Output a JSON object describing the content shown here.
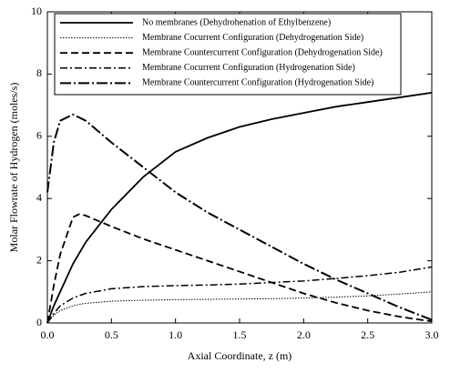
{
  "chart_data": {
    "type": "line",
    "x_label": "Axial Coordinate, z (m)",
    "y_label": "Molar Flowrate of Hydrogen (moles/s)",
    "x": [
      0,
      0.05,
      0.1,
      0.2,
      0.25,
      0.3,
      0.5,
      0.75,
      1,
      1.25,
      1.5,
      1.75,
      2,
      2.25,
      2.5,
      2.75,
      3
    ],
    "series": [
      {
        "name": "No membranes (Dehydrohenation of Ethylbenzene)",
        "color": "#000000",
        "linestyle": "solid",
        "values": [
          0,
          0.55,
          1.0,
          1.9,
          2.25,
          2.6,
          3.65,
          4.7,
          5.5,
          5.95,
          6.3,
          6.55,
          6.75,
          6.95,
          7.1,
          7.25,
          7.4
        ]
      },
      {
        "name": "Membrane Cocurrent Configuration (Dehydrogenation Side)",
        "color": "#000000",
        "linestyle": "dotted",
        "values": [
          0,
          0.25,
          0.4,
          0.55,
          0.6,
          0.63,
          0.7,
          0.73,
          0.75,
          0.76,
          0.77,
          0.78,
          0.8,
          0.83,
          0.87,
          0.93,
          1.0
        ]
      },
      {
        "name": "Membrane Countercurrent Configuration (Dehydrogenation Side)",
        "color": "#000000",
        "linestyle": "dashed",
        "values": [
          0,
          1.2,
          2.2,
          3.4,
          3.5,
          3.45,
          3.1,
          2.7,
          2.35,
          2.0,
          1.65,
          1.3,
          0.95,
          0.65,
          0.4,
          0.2,
          0.05
        ]
      },
      {
        "name": "Membrane Cocurrent Configuration (Hydrogenation Side)",
        "color": "#000000",
        "linestyle": "dashdot",
        "values": [
          0,
          0.3,
          0.55,
          0.8,
          0.88,
          0.95,
          1.1,
          1.17,
          1.2,
          1.22,
          1.25,
          1.3,
          1.35,
          1.43,
          1.52,
          1.63,
          1.8
        ]
      },
      {
        "name": "Membrane Countercurrent Configuration (Hydrogenation Side)",
        "color": "#000000",
        "linestyle": "longdashdot",
        "values": [
          4.2,
          5.8,
          6.5,
          6.7,
          6.6,
          6.5,
          5.8,
          5.0,
          4.2,
          3.55,
          3.0,
          2.45,
          1.9,
          1.4,
          0.95,
          0.5,
          0.1
        ]
      }
    ],
    "xlim": [
      0,
      3
    ],
    "xticks": [
      {
        "value": 0,
        "label": "0.0"
      },
      0.5,
      {
        "value": 1,
        "label": "1.0"
      },
      1.5,
      {
        "value": 2,
        "label": "2.0"
      },
      2.5,
      {
        "value": 3,
        "label": "3.0"
      }
    ],
    "ylim": [
      0,
      10
    ],
    "yticks": [
      0,
      2,
      4,
      6,
      8,
      10
    ],
    "legend": "upper-left"
  }
}
